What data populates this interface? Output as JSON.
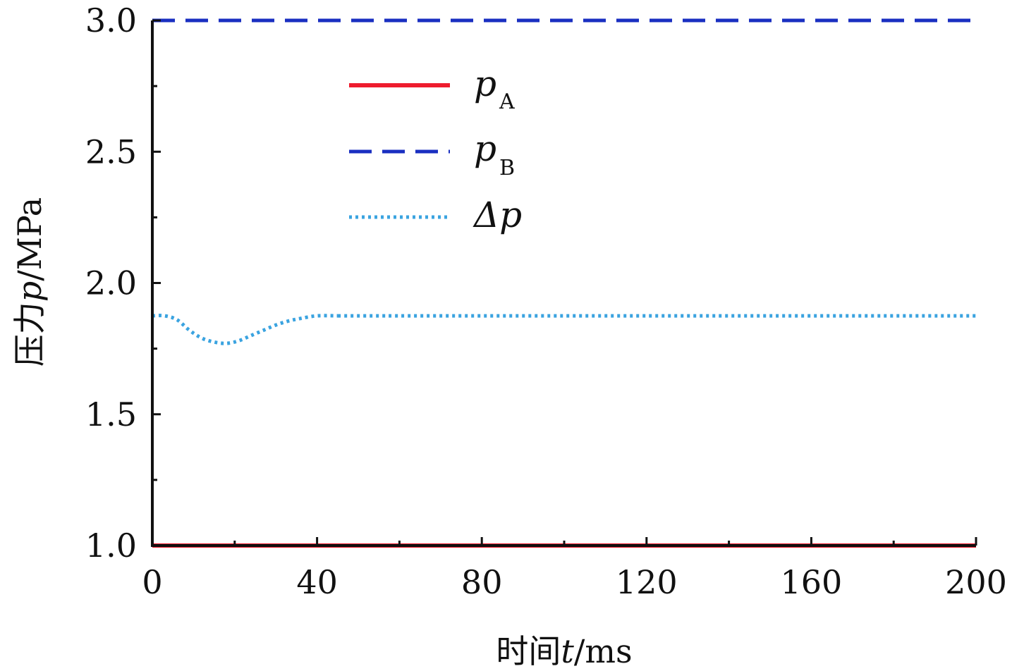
{
  "chart_data": {
    "type": "line",
    "xlabel_prefix": "时间",
    "xlabel_var": "t",
    "xlabel_unit": "/ms",
    "ylabel_prefix": "压力",
    "ylabel_var": "p",
    "ylabel_unit": "/MPa",
    "xlim": [
      0,
      200
    ],
    "ylim": [
      1.0,
      3.0
    ],
    "x_ticks": [
      0,
      40,
      80,
      120,
      160,
      200
    ],
    "x_minor_ticks": [
      20,
      60,
      100,
      140,
      180
    ],
    "y_ticks": [
      1.0,
      1.5,
      2.0,
      2.5,
      3.0
    ],
    "y_minor_ticks": [
      1.25,
      1.75,
      2.25,
      2.75
    ],
    "x_tick_labels": [
      "0",
      "40",
      "80",
      "120",
      "160",
      "200"
    ],
    "y_tick_labels": [
      "1.0",
      "1.5",
      "2.0",
      "2.5",
      "3.0"
    ],
    "legend_position": "upper-center",
    "grid": false,
    "series": [
      {
        "name": "p",
        "name_sub": "A",
        "style": "solid",
        "color": "#ee1c2e",
        "x": [
          0,
          200
        ],
        "y": [
          1.0,
          1.0
        ]
      },
      {
        "name": "p",
        "name_sub": "B",
        "style": "dashed",
        "color": "#1a2fc1",
        "x": [
          0,
          200
        ],
        "y": [
          3.0,
          3.0
        ]
      },
      {
        "name": "Δp",
        "name_sub": "",
        "style": "dotted",
        "color": "#3aa3e0",
        "x": [
          0,
          3,
          6,
          9,
          12,
          15,
          18,
          21,
          24,
          27,
          30,
          33,
          36,
          40,
          45,
          50,
          100,
          150,
          200
        ],
        "y": [
          1.875,
          1.875,
          1.86,
          1.82,
          1.79,
          1.775,
          1.77,
          1.78,
          1.8,
          1.82,
          1.84,
          1.855,
          1.865,
          1.875,
          1.875,
          1.875,
          1.875,
          1.875,
          1.875
        ]
      }
    ]
  }
}
